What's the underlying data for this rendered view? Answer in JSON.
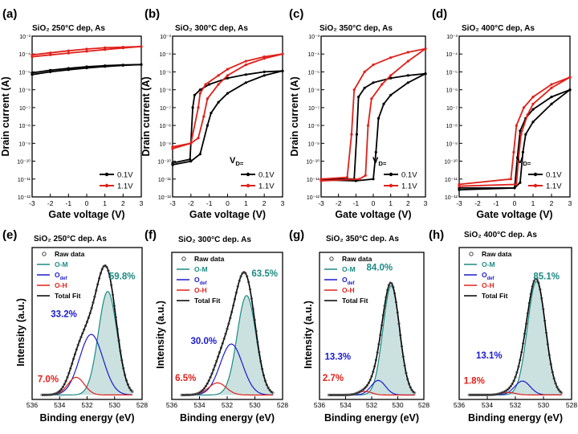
{
  "figure": {
    "colors": {
      "black": "#000000",
      "red": "#e0201a",
      "teal": "#1c8a84",
      "blue": "#1a1acc",
      "fill": "#9ec9c6"
    },
    "chart_data": [
      {
        "type": "line",
        "letter": "(a)",
        "title": "SiO₂ 250°C dep, As",
        "xlabel": "Gate voltage (V)",
        "ylabel": "Drain current (A)",
        "xlim": [
          -3,
          3
        ],
        "ylim_log10": [
          -12,
          -3
        ],
        "xticks": [
          "-3",
          "-2",
          "-1",
          "0",
          "1",
          "2",
          "3"
        ],
        "yticks": [
          "10⁻¹²",
          "10⁻¹¹",
          "10⁻¹⁰",
          "10⁻⁹",
          "10⁻⁸",
          "10⁻⁷",
          "10⁻⁶",
          "10⁻⁵",
          "10⁻⁴",
          "10⁻³"
        ],
        "show_ylabel": true,
        "legend_title": "",
        "series": [
          {
            "name": "0.1V",
            "color": "#000000",
            "fwd": [
              [
                -3,
                -5.15
              ],
              [
                -2,
                -5.0
              ],
              [
                -1,
                -4.88
              ],
              [
                0,
                -4.78
              ],
              [
                1,
                -4.7
              ],
              [
                2,
                -4.64
              ],
              [
                3,
                -4.59
              ]
            ],
            "rev": [
              [
                -3,
                -5.05
              ],
              [
                -2,
                -4.91
              ],
              [
                -1,
                -4.8
              ],
              [
                0,
                -4.71
              ],
              [
                1,
                -4.65
              ],
              [
                2,
                -4.61
              ],
              [
                3,
                -4.59
              ]
            ]
          },
          {
            "name": "1.1V",
            "color": "#e0201a",
            "fwd": [
              [
                -3,
                -4.15
              ],
              [
                -2,
                -4.05
              ],
              [
                -1,
                -3.95
              ],
              [
                0,
                -3.85
              ],
              [
                1,
                -3.75
              ],
              [
                2,
                -3.66
              ],
              [
                3,
                -3.58
              ]
            ],
            "rev": [
              [
                -3,
                -4.05
              ],
              [
                -2,
                -3.93
              ],
              [
                -1,
                -3.82
              ],
              [
                0,
                -3.72
              ],
              [
                1,
                -3.65
              ],
              [
                2,
                -3.61
              ],
              [
                3,
                -3.58
              ]
            ]
          }
        ]
      },
      {
        "type": "line",
        "letter": "(b)",
        "title": "SiO₂ 300°C dep, As",
        "xlabel": "Gate voltage (V)",
        "ylabel": "Drain current (A)",
        "xlim": [
          -3,
          3
        ],
        "ylim_log10": [
          -12,
          -3
        ],
        "xticks": [
          "-3",
          "-2",
          "-1",
          "0",
          "1",
          "2",
          "3"
        ],
        "yticks": [
          "10⁻¹²",
          "10⁻¹¹",
          "10⁻¹⁰",
          "10⁻⁹",
          "10⁻⁸",
          "10⁻⁷",
          "10⁻⁶",
          "10⁻⁵",
          "10⁻⁴",
          "10⁻³"
        ],
        "show_ylabel": true,
        "legend_title": "V_D=",
        "series": [
          {
            "name": "0.1V",
            "color": "#000000",
            "fwd": [
              [
                -3,
                -10.2
              ],
              [
                -2,
                -10.0
              ],
              [
                -1.5,
                -9.6
              ],
              [
                -1.1,
                -8.0
              ],
              [
                -0.9,
                -7.3
              ],
              [
                -0.5,
                -6.7
              ],
              [
                0,
                -6.2
              ],
              [
                1,
                -5.6
              ],
              [
                2,
                -5.2
              ],
              [
                3,
                -4.95
              ]
            ],
            "rev": [
              [
                -3,
                -10.1
              ],
              [
                -2.05,
                -9.9
              ],
              [
                -1.9,
                -7.0
              ],
              [
                -1.8,
                -6.3
              ],
              [
                -1.5,
                -6.0
              ],
              [
                -1,
                -5.7
              ],
              [
                0,
                -5.35
              ],
              [
                1,
                -5.15
              ],
              [
                2,
                -5.0
              ],
              [
                3,
                -4.95
              ]
            ]
          },
          {
            "name": "1.1V",
            "color": "#e0201a",
            "fwd": [
              [
                -3,
                -9.3
              ],
              [
                -2,
                -9.0
              ],
              [
                -1.6,
                -8.7
              ],
              [
                -1.3,
                -7.5
              ],
              [
                -1.1,
                -6.5
              ],
              [
                -0.5,
                -5.7
              ],
              [
                0,
                -5.2
              ],
              [
                1,
                -4.6
              ],
              [
                2,
                -4.25
              ],
              [
                3,
                -4.0
              ]
            ],
            "rev": [
              [
                -3,
                -9.2
              ],
              [
                -2,
                -9.0
              ],
              [
                -1.6,
                -7.0
              ],
              [
                -1.5,
                -6.2
              ],
              [
                -1.2,
                -5.7
              ],
              [
                -0.5,
                -5.2
              ],
              [
                0,
                -4.85
              ],
              [
                1,
                -4.4
              ],
              [
                2,
                -4.15
              ],
              [
                3,
                -4.0
              ]
            ]
          }
        ]
      },
      {
        "type": "line",
        "letter": "(c)",
        "title": "SiO₂ 350°C dep, As",
        "xlabel": "Gate voltage (V)",
        "ylabel": "Drain current (A)",
        "xlim": [
          -3,
          3
        ],
        "ylim_log10": [
          -12,
          -3
        ],
        "xticks": [
          "-3",
          "-2",
          "-1",
          "0",
          "1",
          "2",
          "3"
        ],
        "yticks": [
          "10⁻¹²",
          "10⁻¹¹",
          "10⁻¹⁰",
          "10⁻⁹",
          "10⁻⁸",
          "10⁻⁷",
          "10⁻⁶",
          "10⁻⁵",
          "10⁻⁴",
          "10⁻³"
        ],
        "show_ylabel": true,
        "legend_title": "V_D=",
        "series": [
          {
            "name": "0.1V",
            "color": "#000000",
            "fwd": [
              [
                -3,
                -11.05
              ],
              [
                -1,
                -11.1
              ],
              [
                0,
                -11.0
              ],
              [
                0.15,
                -9.5
              ],
              [
                0.3,
                -7.6
              ],
              [
                0.6,
                -6.8
              ],
              [
                1,
                -6.3
              ],
              [
                2,
                -5.6
              ],
              [
                3,
                -5.1
              ]
            ],
            "rev": [
              [
                -3,
                -11.0
              ],
              [
                -1.1,
                -11.0
              ],
              [
                -0.95,
                -8.5
              ],
              [
                -0.85,
                -6.4
              ],
              [
                -0.5,
                -5.9
              ],
              [
                0,
                -5.6
              ],
              [
                1,
                -5.35
              ],
              [
                2,
                -5.2
              ],
              [
                3,
                -5.1
              ]
            ]
          },
          {
            "name": "1.1V",
            "color": "#e0201a",
            "fwd": [
              [
                -3,
                -11.1
              ],
              [
                -0.8,
                -11.0
              ],
              [
                -0.45,
                -10.8
              ],
              [
                -0.3,
                -8.0
              ],
              [
                -0.1,
                -6.5
              ],
              [
                0.5,
                -5.7
              ],
              [
                1,
                -5.2
              ],
              [
                2,
                -4.4
              ],
              [
                3,
                -3.7
              ]
            ],
            "rev": [
              [
                -3,
                -11.0
              ],
              [
                -1.5,
                -10.9
              ],
              [
                -1.25,
                -8.5
              ],
              [
                -1.1,
                -6.0
              ],
              [
                -0.5,
                -5.0
              ],
              [
                0,
                -4.6
              ],
              [
                1,
                -4.2
              ],
              [
                2,
                -3.9
              ],
              [
                3,
                -3.7
              ]
            ]
          }
        ]
      },
      {
        "type": "line",
        "letter": "(d)",
        "title": "SiO₂ 400°C dep, As",
        "xlabel": "Gate voltage (V)",
        "ylabel": "",
        "xlim": [
          -3,
          3
        ],
        "ylim_log10": [
          -12,
          -3
        ],
        "xticks": [
          "-3",
          "-2",
          "-1",
          "0",
          "1",
          "2",
          "3"
        ],
        "yticks": [
          "10⁻¹²",
          "10⁻¹¹",
          "10⁻¹⁰",
          "10⁻⁹",
          "10⁻⁸",
          "10⁻⁷",
          "10⁻⁶",
          "10⁻⁵",
          "10⁻⁴",
          "10⁻³"
        ],
        "show_ylabel": false,
        "legend_title": "V_D=",
        "series": [
          {
            "name": "0.1V",
            "color": "#000000",
            "fwd": [
              [
                -3,
                -11.6
              ],
              [
                0,
                -11.5
              ],
              [
                0.3,
                -11.2
              ],
              [
                0.45,
                -9.5
              ],
              [
                0.6,
                -8.5
              ],
              [
                1,
                -7.8
              ],
              [
                2,
                -6.8
              ],
              [
                3,
                -6.0
              ]
            ],
            "rev": [
              [
                -3,
                -11.5
              ],
              [
                0,
                -11.5
              ],
              [
                0.15,
                -9.8
              ],
              [
                0.3,
                -8.3
              ],
              [
                0.6,
                -7.6
              ],
              [
                1,
                -7.1
              ],
              [
                2,
                -6.4
              ],
              [
                3,
                -6.0
              ]
            ]
          },
          {
            "name": "1.1V",
            "color": "#e0201a",
            "fwd": [
              [
                -3,
                -11.4
              ],
              [
                0.1,
                -11.3
              ],
              [
                0.2,
                -10.0
              ],
              [
                0.35,
                -8.5
              ],
              [
                0.7,
                -7.4
              ],
              [
                1,
                -6.8
              ],
              [
                2,
                -5.9
              ],
              [
                3,
                -5.3
              ]
            ],
            "rev": [
              [
                -3,
                -11.3
              ],
              [
                -0.2,
                -11.0
              ],
              [
                -0.05,
                -9.5
              ],
              [
                0.1,
                -8.0
              ],
              [
                0.5,
                -7.0
              ],
              [
                1,
                -6.4
              ],
              [
                2,
                -5.7
              ],
              [
                3,
                -5.3
              ]
            ]
          }
        ]
      },
      {
        "type": "area",
        "letter": "(e)",
        "title": "SiO₂ 250°C dep. As",
        "xlabel": "Binding energy (eV)",
        "ylabel": "Intensity (a.u.)",
        "xlim": [
          536,
          528
        ],
        "xticks": [
          "536",
          "534",
          "532",
          "530",
          "528"
        ],
        "legend": [
          "Raw data",
          "O-M",
          "O_def",
          "O-H",
          "Total Fit"
        ],
        "peaks": [
          {
            "name": "O-M",
            "center": 530.5,
            "fwhm": 1.6,
            "height": 0.82,
            "color": "#1c8a84",
            "label": "59.8%"
          },
          {
            "name": "O_def",
            "center": 531.7,
            "fwhm": 2.0,
            "height": 0.48,
            "color": "#1a1acc",
            "label": "33.2%"
          },
          {
            "name": "O-H",
            "center": 532.8,
            "fwhm": 1.4,
            "height": 0.14,
            "color": "#e0201a",
            "label": "7.0%"
          }
        ]
      },
      {
        "type": "area",
        "letter": "(f)",
        "title": "SiO₂ 300°C dep. As",
        "xlabel": "Binding energy (eV)",
        "ylabel": "Intensity (a.u.)",
        "xlim": [
          536,
          528
        ],
        "xticks": [
          "536",
          "534",
          "532",
          "530",
          "528"
        ],
        "legend": [
          "Raw data",
          "O-M",
          "O_def",
          "O-H",
          "Total Fit"
        ],
        "peaks": [
          {
            "name": "O-M",
            "center": 530.6,
            "fwhm": 1.6,
            "height": 0.82,
            "color": "#1c8a84",
            "label": "63.5%"
          },
          {
            "name": "O_def",
            "center": 531.7,
            "fwhm": 1.9,
            "height": 0.42,
            "color": "#1a1acc",
            "label": "30.0%"
          },
          {
            "name": "O-H",
            "center": 532.7,
            "fwhm": 1.5,
            "height": 0.1,
            "color": "#e0201a",
            "label": "6.5%"
          }
        ]
      },
      {
        "type": "area",
        "letter": "(g)",
        "title": "SiO₂ 350°C dep. As",
        "xlabel": "Binding energy (eV)",
        "ylabel": "Intensity (a.u.)",
        "xlim": [
          536,
          528
        ],
        "xticks": [
          "536",
          "534",
          "532",
          "530",
          "528"
        ],
        "legend": [
          "Raw data",
          "O-M",
          "O_def",
          "O-H",
          "Total Fit"
        ],
        "peaks": [
          {
            "name": "O-M",
            "center": 530.5,
            "fwhm": 1.5,
            "height": 0.9,
            "color": "#1c8a84",
            "label": "84.0%"
          },
          {
            "name": "O_def",
            "center": 531.5,
            "fwhm": 1.3,
            "height": 0.12,
            "color": "#1a1acc",
            "label": "13.3%"
          },
          {
            "name": "O-H",
            "center": 532.5,
            "fwhm": 1.2,
            "height": 0.03,
            "color": "#e0201a",
            "label": "2.7%"
          }
        ]
      },
      {
        "type": "area",
        "letter": "(h)",
        "title": "SiO₂ 400°C dep. As",
        "xlabel": "Binding energy (eV)",
        "ylabel": "",
        "xlim": [
          536,
          528
        ],
        "xticks": [
          "536",
          "534",
          "532",
          "530",
          "528"
        ],
        "legend": [
          "Raw data",
          "O-M",
          "O_def",
          "O-H",
          "Total Fit"
        ],
        "peaks": [
          {
            "name": "O-M",
            "center": 530.5,
            "fwhm": 1.5,
            "height": 0.9,
            "color": "#1c8a84",
            "label": "85.1%"
          },
          {
            "name": "O_def",
            "center": 531.5,
            "fwhm": 1.3,
            "height": 0.11,
            "color": "#1a1acc",
            "label": "13.1%"
          },
          {
            "name": "O-H",
            "center": 532.5,
            "fwhm": 1.2,
            "height": 0.02,
            "color": "#e0201a",
            "label": "1.8%"
          }
        ]
      }
    ]
  }
}
